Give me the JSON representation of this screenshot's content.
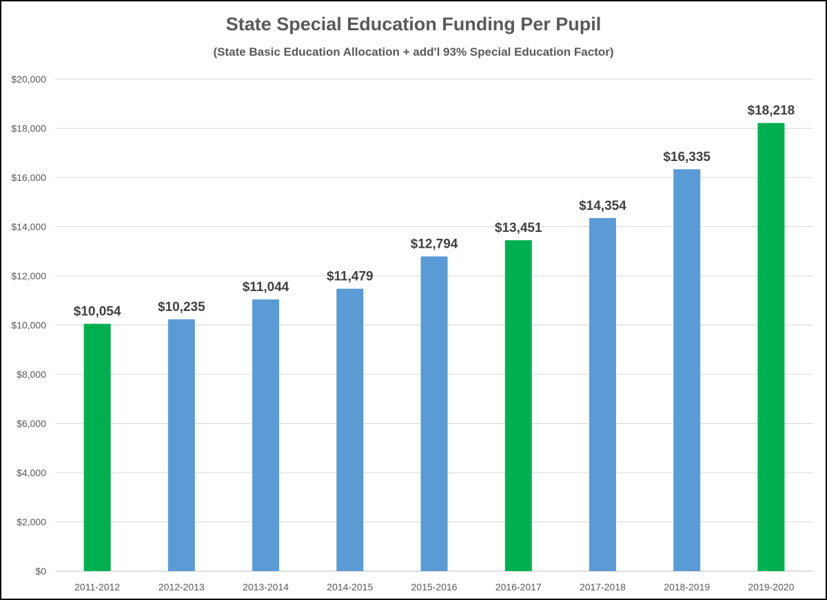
{
  "chart_data": {
    "type": "bar",
    "title": "State Special Education Funding Per Pupil",
    "subtitle": "(State Basic Education Allocation + add'l 93% Special Education Factor)",
    "categories": [
      "2011-2012",
      "2012-2013",
      "2013-2014",
      "2014-2015",
      "2015-2016",
      "2016-2017",
      "2017-2018",
      "2018-2019",
      "2019-2020"
    ],
    "values": [
      10054,
      10235,
      11044,
      11479,
      12794,
      13451,
      14354,
      16335,
      18218
    ],
    "data_labels": [
      "$10,054",
      "$10,235",
      "$11,044",
      "$11,479",
      "$12,794",
      "$13,451",
      "$14,354",
      "$16,335",
      "$18,218"
    ],
    "bar_colors": [
      "#00b050",
      "#5b9bd5",
      "#5b9bd5",
      "#5b9bd5",
      "#5b9bd5",
      "#00b050",
      "#5b9bd5",
      "#5b9bd5",
      "#00b050"
    ],
    "ylim": [
      0,
      20000
    ],
    "yticks": [
      0,
      2000,
      4000,
      6000,
      8000,
      10000,
      12000,
      14000,
      16000,
      18000,
      20000
    ],
    "ytick_labels": [
      "$0",
      "$2,000",
      "$4,000",
      "$6,000",
      "$8,000",
      "$10,000",
      "$12,000",
      "$14,000",
      "$16,000",
      "$18,000",
      "$20,000"
    ],
    "xlabel": "",
    "ylabel": "",
    "grid": true,
    "legend": "none",
    "gridline_color": "#d9d9d9"
  }
}
